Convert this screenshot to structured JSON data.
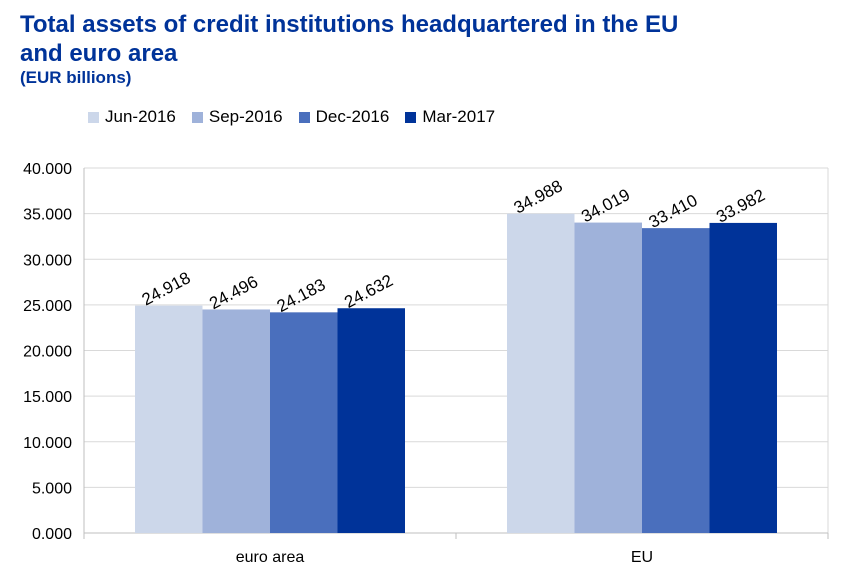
{
  "chart_data": {
    "type": "bar",
    "title": "Total assets of credit institutions headquartered in the EU and euro area",
    "subtitle": "(EUR billions)",
    "categories": [
      "euro area",
      "EU"
    ],
    "series": [
      {
        "name": "Jun-2016",
        "color": "#ccd7ea",
        "values": [
          24918,
          34988
        ],
        "labels": [
          "24.918",
          "34.988"
        ]
      },
      {
        "name": "Sep-2016",
        "color": "#9fb2da",
        "values": [
          24496,
          34019
        ],
        "labels": [
          "24.496",
          "34.019"
        ]
      },
      {
        "name": "Dec-2016",
        "color": "#4a6fbd",
        "values": [
          24183,
          33410
        ],
        "labels": [
          "24.183",
          "33.410"
        ]
      },
      {
        "name": "Mar-2017",
        "color": "#003399",
        "values": [
          24632,
          33982
        ],
        "labels": [
          "24.632",
          "33.982"
        ]
      }
    ],
    "ylim": [
      0,
      40000
    ],
    "yticks": [
      0,
      5000,
      10000,
      15000,
      20000,
      25000,
      30000,
      35000,
      40000
    ],
    "ytick_labels": [
      "0.000",
      "5.000",
      "10.000",
      "15.000",
      "20.000",
      "25.000",
      "30.000",
      "35.000",
      "40.000"
    ],
    "grid": true,
    "legend_position": "top"
  }
}
